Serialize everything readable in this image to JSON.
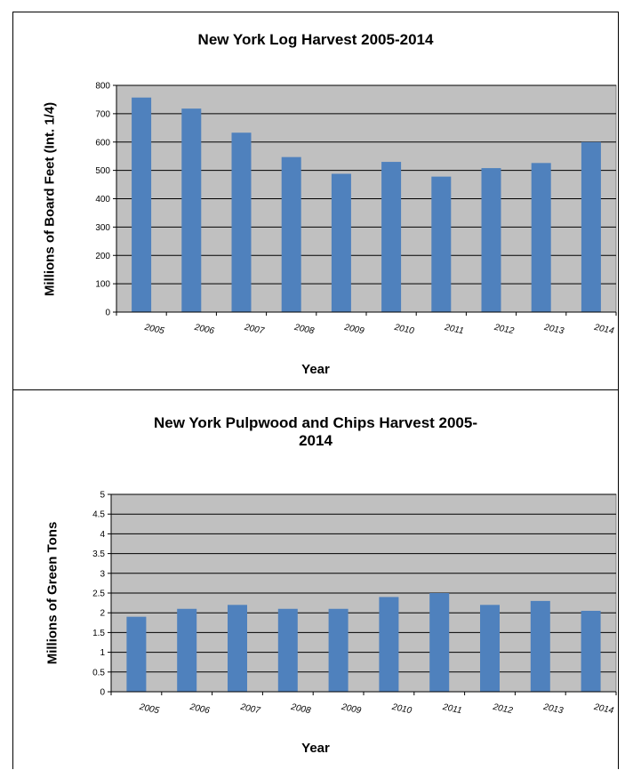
{
  "chart_data": [
    {
      "type": "bar",
      "title": "New York Log Harvest 2005-2014",
      "xlabel": "Year",
      "ylabel": "Millions of Board Feet (Int. 1/4)",
      "categories": [
        "2005",
        "2006",
        "2007",
        "2008",
        "2009",
        "2010",
        "2011",
        "2012",
        "2013",
        "2014"
      ],
      "values": [
        757,
        718,
        633,
        547,
        488,
        530,
        478,
        508,
        526,
        600
      ],
      "ylim": [
        0,
        800
      ],
      "yticks": [
        "0",
        "100",
        "200",
        "300",
        "400",
        "500",
        "600",
        "700",
        "800"
      ],
      "grid": true,
      "colors": {
        "bar": "#4f81bd",
        "plot_bg": "#c0c0c0"
      }
    },
    {
      "type": "bar",
      "title": "New York Pulpwood and Chips Harvest 2005-2014",
      "xlabel": "Year",
      "ylabel": "Millions of Green Tons",
      "categories": [
        "2005",
        "2006",
        "2007",
        "2008",
        "2009",
        "2010",
        "2011",
        "2012",
        "2013",
        "2014"
      ],
      "values": [
        1.9,
        2.1,
        2.2,
        2.1,
        2.1,
        2.4,
        2.5,
        2.2,
        2.3,
        2.05
      ],
      "ylim": [
        0,
        5
      ],
      "yticks": [
        "0",
        "0.5",
        "1",
        "1.5",
        "2",
        "2.5",
        "3",
        "3.5",
        "4",
        "4.5",
        "5"
      ],
      "grid": true,
      "colors": {
        "bar": "#4f81bd",
        "plot_bg": "#c0c0c0"
      }
    }
  ]
}
